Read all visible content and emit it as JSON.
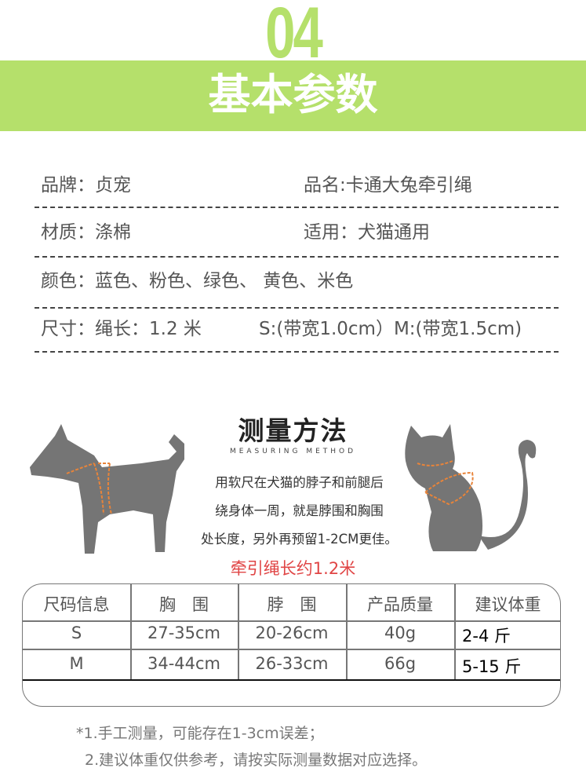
{
  "header": {
    "number": "04",
    "title": "基本参数",
    "accent": "#b5e06b"
  },
  "specs": [
    {
      "left": "品牌：贞宠",
      "right": "品名:卡通大兔牵引绳"
    },
    {
      "left": "材质：涤棉",
      "right": "适用：犬猫通用"
    },
    {
      "left": "颜色：蓝色、粉色、绿色、 黄色、米色"
    },
    {
      "left": "尺寸：绳长：1.2 米",
      "right": "S:(带宽1.0cm）M:(带宽1.5cm)"
    }
  ],
  "measure": {
    "title": "测量方法",
    "subtitle": "MEASURING METHOD",
    "lines": [
      "用软尺在犬猫的脖子和前腿后",
      "绕身体一周，就是脖围和胸围",
      "处长度，另外再预留1-2CM更佳。"
    ],
    "rope_length": "牵引绳长约1.2米",
    "icons": [
      "dog-silhouette",
      "cat-silhouette"
    ]
  },
  "size_table": {
    "headers": [
      "尺码信息",
      "胸　围",
      "脖　围",
      "产品质量",
      "建议体重"
    ],
    "rows": [
      [
        "S",
        "27-35cm",
        "20-26cm",
        "40g",
        "2-4 斤"
      ],
      [
        "M",
        "34-44cm",
        "26-33cm",
        "66g",
        "5-15 斤"
      ]
    ]
  },
  "notes": [
    "*1.手工测量，可能存在1-3cm误差；",
    "2.建议体重仅供参考，请按实际测量数据对应选择。"
  ]
}
